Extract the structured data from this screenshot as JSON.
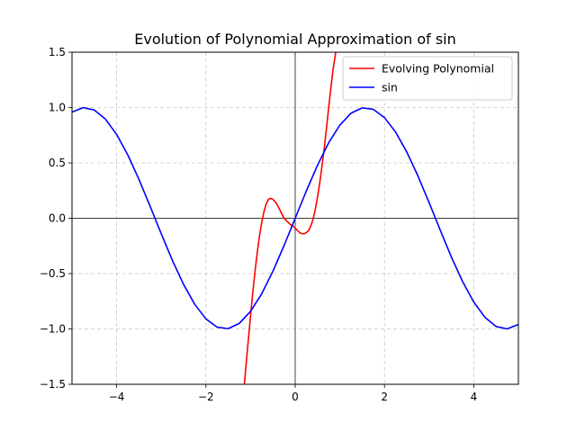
{
  "chart_data": {
    "type": "line",
    "title": "Evolution of Polynomial Approximation of sin",
    "xlabel": "",
    "ylabel": "",
    "xlim": [
      -5,
      5
    ],
    "ylim": [
      -1.5,
      1.5
    ],
    "x_ticks": [
      -4,
      -2,
      0,
      2,
      4
    ],
    "y_ticks": [
      -1.5,
      -1.0,
      -0.5,
      0.0,
      0.5,
      1.0,
      1.5
    ],
    "x_tick_labels": [
      "−4",
      "−2",
      "0",
      "2",
      "4"
    ],
    "y_tick_labels": [
      "−1.5",
      "−1.0",
      "−0.5",
      "0.0",
      "0.5",
      "1.0",
      "1.5"
    ],
    "grid": true,
    "axis_lines_at_zero": true,
    "legend_position": "upper-right",
    "series": [
      {
        "name": "Evolving Polynomial",
        "color": "#ff0000",
        "x": [
          -1.15,
          -1.1,
          -1.05,
          -1.0,
          -0.95,
          -0.9,
          -0.85,
          -0.8,
          -0.75,
          -0.7,
          -0.65,
          -0.6,
          -0.55,
          -0.5,
          -0.45,
          -0.4,
          -0.35,
          -0.3,
          -0.25,
          -0.2,
          -0.15,
          -0.1,
          -0.05,
          0.0,
          0.05,
          0.1,
          0.15,
          0.2,
          0.25,
          0.3,
          0.35,
          0.4,
          0.45,
          0.5,
          0.55,
          0.6,
          0.65,
          0.7,
          0.75,
          0.8,
          0.85,
          0.9,
          0.95
        ],
        "y": [
          -1.55,
          -1.32,
          -1.1,
          -0.88,
          -0.67,
          -0.48,
          -0.31,
          -0.16,
          -0.04,
          0.06,
          0.13,
          0.17,
          0.18,
          0.17,
          0.15,
          0.12,
          0.08,
          0.04,
          0.0,
          -0.02,
          -0.04,
          -0.06,
          -0.07,
          -0.09,
          -0.11,
          -0.13,
          -0.14,
          -0.14,
          -0.13,
          -0.11,
          -0.07,
          -0.01,
          0.08,
          0.19,
          0.32,
          0.47,
          0.63,
          0.81,
          1.0,
          1.18,
          1.35,
          1.48,
          1.6
        ]
      },
      {
        "name": "sin",
        "color": "#0000ff",
        "x": [
          -5.0,
          -4.75,
          -4.5,
          -4.25,
          -4.0,
          -3.75,
          -3.5,
          -3.25,
          -3.0,
          -2.75,
          -2.5,
          -2.25,
          -2.0,
          -1.75,
          -1.5,
          -1.25,
          -1.0,
          -0.75,
          -0.5,
          -0.25,
          0.0,
          0.25,
          0.5,
          0.75,
          1.0,
          1.25,
          1.5,
          1.75,
          2.0,
          2.25,
          2.5,
          2.75,
          3.0,
          3.25,
          3.5,
          3.75,
          4.0,
          4.25,
          4.5,
          4.75,
          5.0
        ],
        "y": [
          0.959,
          0.999,
          0.978,
          0.895,
          0.757,
          0.572,
          0.351,
          0.108,
          -0.141,
          -0.382,
          -0.598,
          -0.778,
          -0.909,
          -0.984,
          -0.997,
          -0.949,
          -0.841,
          -0.682,
          -0.479,
          -0.247,
          0.0,
          0.247,
          0.479,
          0.682,
          0.841,
          0.949,
          0.997,
          0.984,
          0.909,
          0.778,
          0.598,
          0.382,
          0.141,
          -0.108,
          -0.351,
          -0.572,
          -0.757,
          -0.895,
          -0.978,
          -0.999,
          -0.959
        ]
      }
    ]
  }
}
